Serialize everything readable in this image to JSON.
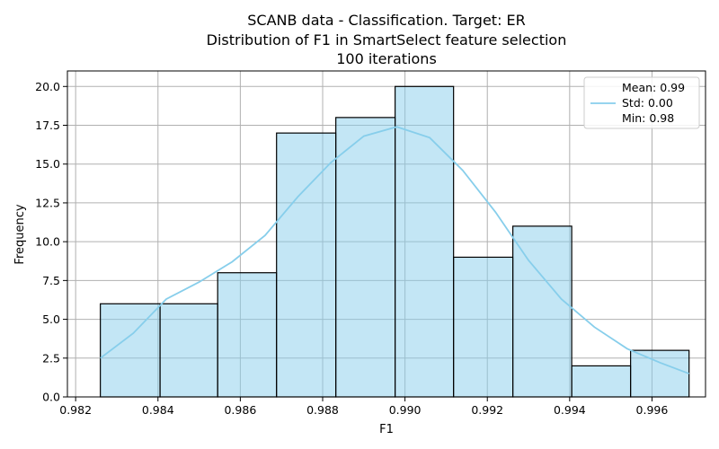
{
  "chart_data": {
    "type": "bar",
    "title_lines": [
      "SCANB data - Classification. Target: ER",
      "Distribution of F1 in SmartSelect feature selection",
      "100 iterations"
    ],
    "xlabel": "F1",
    "ylabel": "Frequency",
    "xlim": [
      0.9818,
      0.9973
    ],
    "ylim": [
      0,
      21.0
    ],
    "grid": true,
    "x_ticks": [
      "0.982",
      "0.984",
      "0.986",
      "0.988",
      "0.990",
      "0.992",
      "0.994",
      "0.996"
    ],
    "x_tick_values": [
      0.982,
      0.984,
      0.986,
      0.988,
      0.99,
      0.992,
      0.994,
      0.996
    ],
    "y_ticks": [
      "0.0",
      "2.5",
      "5.0",
      "7.5",
      "10.0",
      "12.5",
      "15.0",
      "17.5",
      "20.0"
    ],
    "y_tick_values": [
      0,
      2.5,
      5.0,
      7.5,
      10.0,
      12.5,
      15.0,
      17.5,
      20.0
    ],
    "bins": [
      {
        "start": 0.9826,
        "end": 0.98405,
        "count": 6
      },
      {
        "start": 0.98405,
        "end": 0.98545,
        "count": 6
      },
      {
        "start": 0.98545,
        "end": 0.98688,
        "count": 8
      },
      {
        "start": 0.98688,
        "end": 0.98832,
        "count": 17
      },
      {
        "start": 0.98832,
        "end": 0.98976,
        "count": 18
      },
      {
        "start": 0.98976,
        "end": 0.99118,
        "count": 20
      },
      {
        "start": 0.99118,
        "end": 0.99262,
        "count": 9
      },
      {
        "start": 0.99262,
        "end": 0.99405,
        "count": 11
      },
      {
        "start": 0.99405,
        "end": 0.99548,
        "count": 2
      },
      {
        "start": 0.99548,
        "end": 0.9969,
        "count": 3
      }
    ],
    "kde": {
      "x": [
        0.9826,
        0.9834,
        0.9842,
        0.985,
        0.9858,
        0.9866,
        0.9874,
        0.9882,
        0.989,
        0.9898,
        0.9906,
        0.9914,
        0.9922,
        0.993,
        0.9938,
        0.9946,
        0.9954,
        0.9962,
        0.9969
      ],
      "y": [
        2.5,
        4.1,
        6.3,
        7.4,
        8.7,
        10.4,
        12.9,
        15.1,
        16.8,
        17.4,
        16.7,
        14.6,
        11.9,
        8.8,
        6.3,
        4.5,
        3.1,
        2.2,
        1.5
      ]
    },
    "legend": {
      "position": "top-right",
      "entries": [
        "Mean: 0.99",
        "Std: 0.00",
        "Min: 0.98"
      ],
      "line_color": "#87ceeb"
    },
    "colors": {
      "bar_fill": "#87ceeb",
      "bar_edge": "#000000",
      "kde_line": "#87ceeb",
      "grid": "#b0b0b0"
    }
  }
}
